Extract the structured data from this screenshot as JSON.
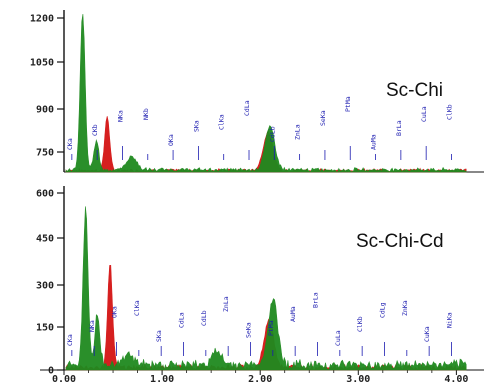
{
  "chart_data": [
    {
      "type": "area",
      "title": "Sc-Chi",
      "xlabel": "",
      "ylabel": "",
      "xlim": [
        0,
        4.2
      ],
      "ylim": [
        620,
        1200
      ],
      "yticks": [
        "1200",
        "1050",
        "900",
        "750"
      ],
      "xticks": [
        "0.00",
        "1.00",
        "2.00",
        "3.00",
        "4.00"
      ],
      "series_colors": {
        "main": "#1f8a1f",
        "secondary": "#d41414"
      },
      "peak_labels": [
        "CKa",
        "CKb",
        "NKa",
        "NKb",
        "OKa",
        "SKa",
        "ClKa",
        "CdLa",
        "CdLb",
        "ZnLa",
        "SeKa",
        "PtMa",
        "AuMa",
        "BrLa",
        "CuLa",
        "ClKb"
      ],
      "green_peaks": [
        {
          "x": 0.19,
          "y": 1200
        },
        {
          "x": 0.33,
          "y": 730
        },
        {
          "x": 0.69,
          "y": 670
        },
        {
          "x": 2.1,
          "y": 778
        }
      ],
      "red_peaks": [
        {
          "x": 0.44,
          "y": 822
        },
        {
          "x": 2.08,
          "y": 760
        }
      ]
    },
    {
      "type": "area",
      "title": "Sc-Chi-Cd",
      "xlabel": "",
      "ylabel": "",
      "xlim": [
        0,
        4.2
      ],
      "ylim": [
        0,
        600
      ],
      "yticks": [
        "600",
        "450",
        "300",
        "150",
        "0"
      ],
      "xticks": [
        "0.00",
        "1.00",
        "2.00",
        "3.00",
        "4.00"
      ],
      "series_colors": {
        "main": "#1f8a1f",
        "secondary": "#d41414"
      },
      "peak_labels": [
        "CKa",
        "NKa",
        "OKa",
        "ClKa",
        "SKa",
        "CdLa",
        "CdLb",
        "ZnLa",
        "SeKa",
        "PtMa",
        "AuMa",
        "BrLa",
        "CuLa",
        "ClKb",
        "CdLg",
        "ZnKa",
        "CuKa",
        "NiKa"
      ],
      "green_peaks": [
        {
          "x": 0.22,
          "y": 520
        },
        {
          "x": 0.34,
          "y": 170
        },
        {
          "x": 0.66,
          "y": 40
        },
        {
          "x": 1.55,
          "y": 45
        },
        {
          "x": 2.13,
          "y": 215
        }
      ],
      "red_peaks": [
        {
          "x": 0.47,
          "y": 345
        },
        {
          "x": 2.09,
          "y": 155
        }
      ]
    }
  ]
}
